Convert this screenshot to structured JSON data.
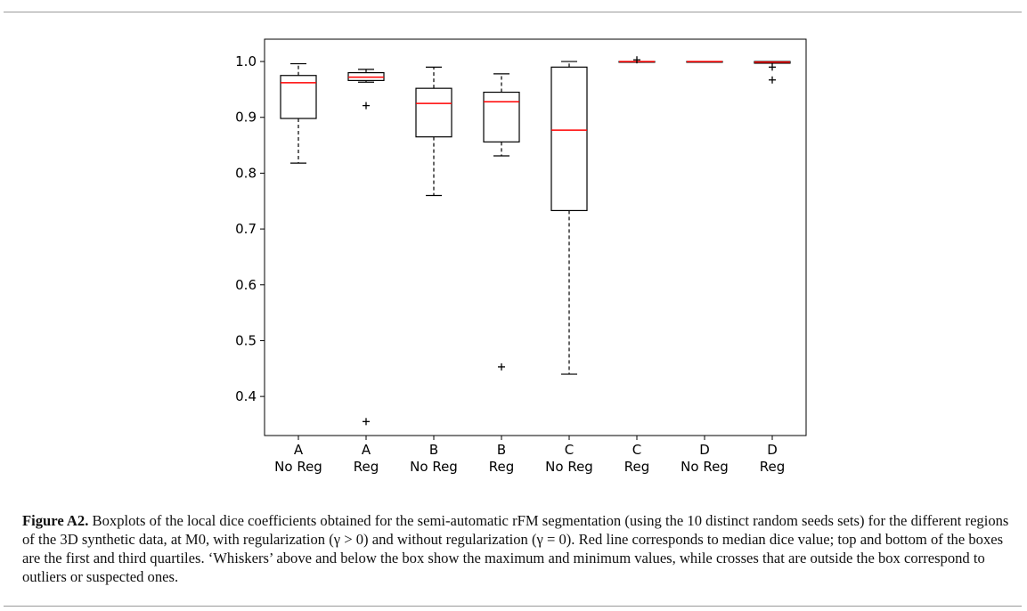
{
  "figure": {
    "label": "Figure A2.",
    "caption": "Boxplots of the local dice coefficients obtained for the semi-automatic rFM segmentation (using the 10 distinct random seeds sets) for the different regions of the 3D synthetic data, at M0, with regularization (γ > 0) and without regularization (γ = 0). Red line corresponds to median dice value; top and bottom of the boxes are the first and third quartiles. ‘Whiskers’ above and below the box show the maximum and minimum values, while crosses that are outside the box correspond to outliers or suspected ones."
  },
  "chart_data": {
    "type": "boxplot",
    "title": "",
    "xlabel": "",
    "ylabel": "",
    "ylim": [
      0.33,
      1.04
    ],
    "yticks": [
      0.4,
      0.5,
      0.6,
      0.7,
      0.8,
      0.9,
      1.0
    ],
    "ytick_labels": [
      "0.4",
      "0.5",
      "0.6",
      "0.7",
      "0.8",
      "0.9",
      "1.0"
    ],
    "grid": false,
    "median_color": "#ff0000",
    "box_color": "#000000",
    "categories": [
      {
        "line1": "A",
        "line2": "No Reg",
        "whislo": 0.818,
        "q1": 0.898,
        "med": 0.962,
        "q3": 0.975,
        "whishi": 0.996,
        "fliers": []
      },
      {
        "line1": "A",
        "line2": "Reg",
        "whislo": 0.963,
        "q1": 0.966,
        "med": 0.972,
        "q3": 0.98,
        "whishi": 0.986,
        "fliers": [
          0.921,
          0.355
        ]
      },
      {
        "line1": "B",
        "line2": "No Reg",
        "whislo": 0.76,
        "q1": 0.865,
        "med": 0.925,
        "q3": 0.952,
        "whishi": 0.99,
        "fliers": []
      },
      {
        "line1": "B",
        "line2": "Reg",
        "whislo": 0.831,
        "q1": 0.856,
        "med": 0.928,
        "q3": 0.945,
        "whishi": 0.978,
        "fliers": [
          0.453
        ]
      },
      {
        "line1": "C",
        "line2": "No Reg",
        "whislo": 0.44,
        "q1": 0.733,
        "med": 0.877,
        "q3": 0.99,
        "whishi": 1.0,
        "fliers": []
      },
      {
        "line1": "C",
        "line2": "Reg",
        "whislo": 0.999,
        "q1": 0.999,
        "med": 1.0,
        "q3": 1.0,
        "whishi": 1.0,
        "fliers": [
          1.003
        ]
      },
      {
        "line1": "D",
        "line2": "No Reg",
        "whislo": 1.0,
        "q1": 1.0,
        "med": 1.0,
        "q3": 1.0,
        "whishi": 1.0,
        "fliers": []
      },
      {
        "line1": "D",
        "line2": "Reg",
        "whislo": 0.997,
        "q1": 0.997,
        "med": 0.999,
        "q3": 1.0,
        "whishi": 1.0,
        "fliers": [
          0.99,
          0.967
        ]
      }
    ]
  }
}
